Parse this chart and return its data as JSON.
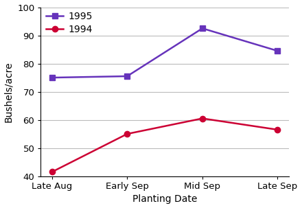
{
  "categories": [
    "Late Aug",
    "Early Sep",
    "Mid Sep",
    "Late Sep"
  ],
  "series": [
    {
      "label": "1995",
      "values": [
        75,
        75.5,
        92.5,
        84.5
      ],
      "color": "#6633bb",
      "marker": "s",
      "markersize": 6,
      "linewidth": 1.8
    },
    {
      "label": "1994",
      "values": [
        41.5,
        55,
        60.5,
        56.5
      ],
      "color": "#cc0033",
      "marker": "o",
      "markersize": 6,
      "linewidth": 1.8
    }
  ],
  "xlabel": "Planting Date",
  "ylabel": "Bushels/acre",
  "ylim": [
    40,
    100
  ],
  "yticks": [
    40,
    50,
    60,
    70,
    80,
    90,
    100
  ],
  "background_color": "#ffffff",
  "grid_color": "#bbbbbb",
  "legend_fontsize": 10,
  "axis_label_fontsize": 10,
  "tick_fontsize": 9.5
}
